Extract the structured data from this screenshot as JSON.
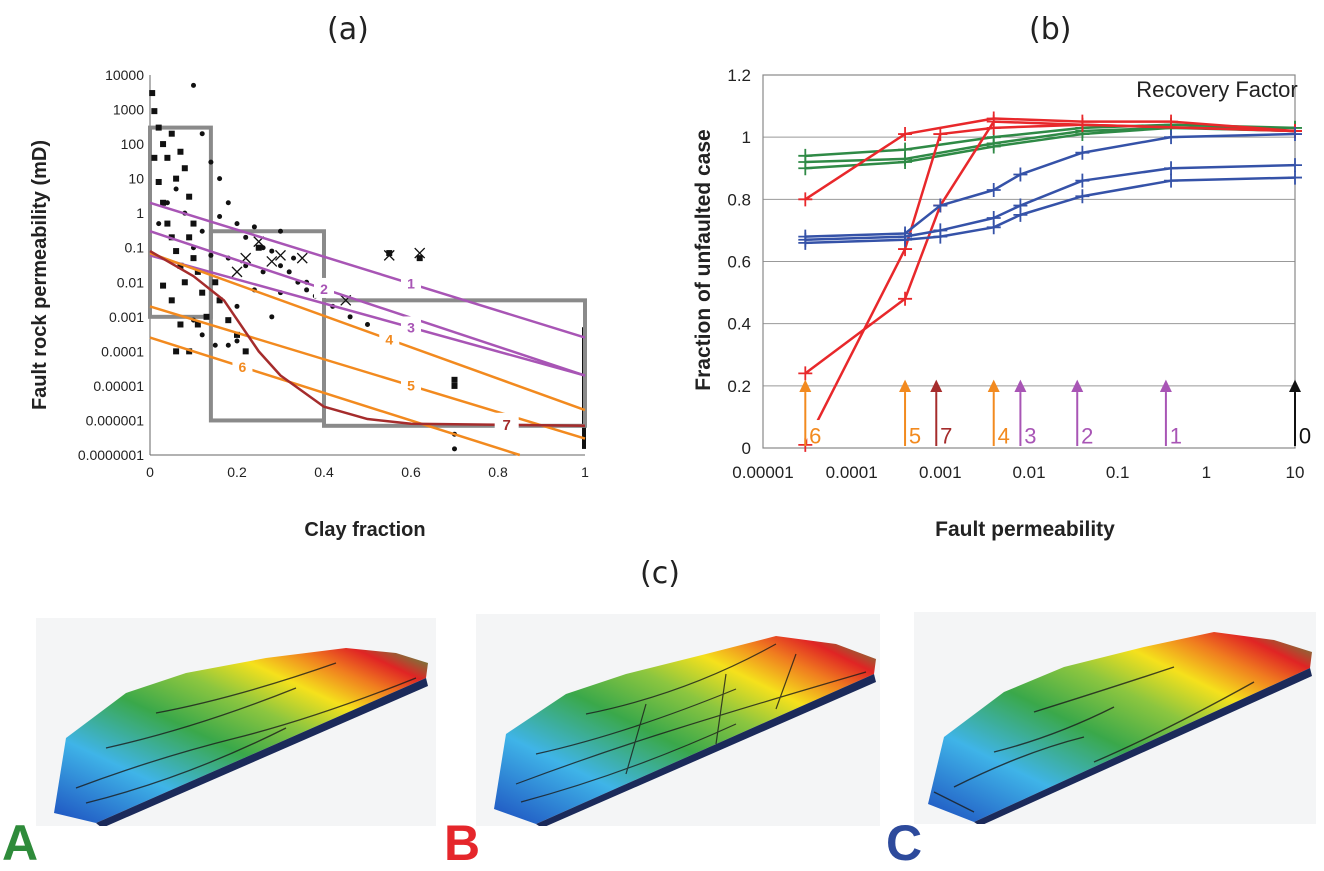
{
  "panels": {
    "a": {
      "label": "(a)"
    },
    "b": {
      "label": "(b)"
    },
    "c": {
      "label": "(c)"
    }
  },
  "colors": {
    "magenta": "#a855b5",
    "orange": "#f28a1f",
    "darkred": "#a52c2c",
    "red": "#e8282b",
    "green": "#2f8a46",
    "blue": "#3552a8",
    "gray": "#8a8a8a",
    "black": "#111111",
    "A": "#2e8b3a",
    "B": "#e5262b",
    "C": "#2d4a9c"
  },
  "chart_data": [
    {
      "id": "a",
      "type": "scatter",
      "xlabel": "Clay fraction",
      "ylabel": "Fault rock permeability (mD)",
      "xlim": [
        0,
        1
      ],
      "ylim_log10": [
        -7,
        4
      ],
      "x_ticks": [
        "0",
        "0.2",
        "0.4",
        "0.6",
        "0.8",
        "1"
      ],
      "y_ticks": [
        "10000",
        "1000",
        "100",
        "10",
        "1",
        "0.1",
        "0.01",
        "0.001",
        "0.0001",
        "0.00001",
        "0.000001",
        "0.0000001"
      ],
      "lines": [
        {
          "name": "1",
          "color": "magenta",
          "from": [
            0,
            2
          ],
          "to": [
            1,
            0.00025
          ]
        },
        {
          "name": "2",
          "color": "magenta",
          "from": [
            0,
            0.3
          ],
          "to": [
            1,
            2e-05
          ]
        },
        {
          "name": "3",
          "color": "magenta",
          "from": [
            0,
            0.06
          ],
          "to": [
            1,
            2e-05
          ]
        },
        {
          "name": "4",
          "color": "orange",
          "from": [
            0,
            0.07
          ],
          "to": [
            1,
            2e-06
          ]
        },
        {
          "name": "5",
          "color": "orange",
          "from": [
            0,
            0.002
          ],
          "to": [
            1,
            3e-07
          ]
        },
        {
          "name": "6",
          "color": "orange",
          "from": [
            0,
            0.00025
          ],
          "to": [
            0.85,
            1e-07
          ]
        }
      ],
      "curve7": {
        "name": "7",
        "color": "darkred",
        "points": [
          [
            0,
            0.08
          ],
          [
            0.1,
            0.015
          ],
          [
            0.17,
            0.003
          ],
          [
            0.25,
            0.0001
          ],
          [
            0.3,
            2e-05
          ],
          [
            0.4,
            2.5e-06
          ],
          [
            0.5,
            1.1e-06
          ],
          [
            0.6,
            8e-07
          ],
          [
            1,
            7e-07
          ]
        ]
      },
      "boxes": [
        {
          "x": [
            0,
            0.14
          ],
          "y": [
            0.001,
            300
          ]
        },
        {
          "x": [
            0.14,
            0.4
          ],
          "y": [
            1e-06,
            0.3
          ]
        },
        {
          "x": [
            0.4,
            1
          ],
          "y": [
            7e-07,
            0.003
          ]
        }
      ],
      "points_square": [
        [
          0.005,
          3000
        ],
        [
          0.01,
          900
        ],
        [
          0.02,
          300
        ],
        [
          0.03,
          100
        ],
        [
          0.04,
          40
        ],
        [
          0.05,
          200
        ],
        [
          0.06,
          10
        ],
        [
          0.07,
          60
        ],
        [
          0.08,
          20
        ],
        [
          0.09,
          3
        ],
        [
          0.1,
          0.5
        ],
        [
          0.01,
          40
        ],
        [
          0.02,
          8
        ],
        [
          0.03,
          2
        ],
        [
          0.04,
          0.5
        ],
        [
          0.05,
          0.2
        ],
        [
          0.06,
          0.08
        ],
        [
          0.07,
          0.03
        ],
        [
          0.08,
          0.01
        ],
        [
          0.09,
          0.2
        ],
        [
          0.1,
          0.05
        ],
        [
          0.11,
          0.02
        ],
        [
          0.12,
          0.005
        ],
        [
          0.13,
          0.001
        ],
        [
          0.15,
          0.01
        ],
        [
          0.16,
          0.003
        ],
        [
          0.18,
          0.0008
        ],
        [
          0.2,
          0.0003
        ],
        [
          0.22,
          0.0001
        ],
        [
          0.06,
          0.0001
        ],
        [
          0.7,
          1.5e-05
        ],
        [
          0.7,
          1e-05
        ],
        [
          0.55,
          0.07
        ],
        [
          0.62,
          0.05
        ],
        [
          0.03,
          0.008
        ],
        [
          0.05,
          0.003
        ],
        [
          0.07,
          0.0006
        ],
        [
          0.09,
          0.0001
        ],
        [
          0.11,
          0.0006
        ],
        [
          0.25,
          0.1
        ]
      ],
      "points_dot": [
        [
          0.1,
          5000
        ],
        [
          0.12,
          200
        ],
        [
          0.14,
          30
        ],
        [
          0.16,
          10
        ],
        [
          0.18,
          2
        ],
        [
          0.2,
          0.5
        ],
        [
          0.22,
          0.2
        ],
        [
          0.24,
          0.4
        ],
        [
          0.26,
          0.1
        ],
        [
          0.28,
          0.08
        ],
        [
          0.3,
          0.3
        ],
        [
          0.32,
          0.02
        ],
        [
          0.34,
          0.01
        ],
        [
          0.36,
          0.006
        ],
        [
          0.38,
          0.004
        ],
        [
          0.42,
          0.002
        ],
        [
          0.46,
          0.001
        ],
        [
          0.5,
          0.0006
        ],
        [
          0.2,
          0.0002
        ],
        [
          0.15,
          0.00015
        ],
        [
          0.18,
          0.00015
        ],
        [
          0.1,
          0.0008
        ],
        [
          0.12,
          0.0003
        ],
        [
          0.3,
          0.005
        ],
        [
          0.26,
          0.02
        ],
        [
          0.22,
          0.03
        ],
        [
          0.24,
          0.006
        ],
        [
          0.28,
          0.001
        ],
        [
          0.7,
          1.5e-07
        ],
        [
          0.7,
          4e-07
        ],
        [
          0.02,
          0.5
        ],
        [
          0.04,
          2
        ],
        [
          0.06,
          5
        ],
        [
          0.08,
          1
        ],
        [
          0.1,
          0.1
        ],
        [
          0.12,
          0.3
        ],
        [
          0.14,
          0.06
        ],
        [
          0.16,
          0.8
        ],
        [
          0.18,
          0.05
        ],
        [
          0.2,
          0.002
        ],
        [
          0.3,
          0.03
        ],
        [
          0.33,
          0.05
        ],
        [
          0.36,
          0.01
        ]
      ],
      "points_x": [
        [
          0.25,
          0.15
        ],
        [
          0.28,
          0.04
        ],
        [
          0.3,
          0.06
        ],
        [
          0.35,
          0.05
        ],
        [
          0.45,
          0.003
        ],
        [
          0.55,
          0.06
        ],
        [
          0.62,
          0.07
        ],
        [
          0.22,
          0.05
        ],
        [
          0.2,
          0.02
        ]
      ]
    },
    {
      "id": "b",
      "type": "line",
      "title": "Recovery Factor",
      "xlabel": "Fault permeability",
      "ylabel": "Fraction of unfaulted case",
      "xlim_log10": [
        -5,
        1
      ],
      "ylim": [
        0,
        1.2
      ],
      "x_ticks": [
        "0.00001",
        "0.0001",
        "0.001",
        "0.01",
        "0.1",
        "1",
        "10"
      ],
      "y_ticks": [
        "0",
        "0.2",
        "0.4",
        "0.6",
        "0.8",
        "1",
        "1.2"
      ],
      "series": [
        {
          "color": "green",
          "x": [
            3e-05,
            0.0004,
            0.004,
            0.04,
            0.4,
            10
          ],
          "y": [
            0.94,
            0.96,
            1.0,
            1.03,
            1.04,
            1.03
          ]
        },
        {
          "color": "green",
          "x": [
            3e-05,
            0.0004,
            0.004,
            0.04,
            0.4,
            10
          ],
          "y": [
            0.92,
            0.93,
            0.98,
            1.02,
            1.03,
            1.02
          ]
        },
        {
          "color": "green",
          "x": [
            3e-05,
            0.0004,
            0.004,
            0.04,
            0.4,
            10
          ],
          "y": [
            0.9,
            0.92,
            0.97,
            1.01,
            1.03,
            1.03
          ]
        },
        {
          "color": "red",
          "x": [
            3e-05,
            0.0004,
            0.004,
            0.04,
            0.4,
            10
          ],
          "y": [
            0.8,
            1.01,
            1.06,
            1.05,
            1.05,
            1.02
          ]
        },
        {
          "color": "red",
          "x": [
            3e-05,
            0.0004,
            0.001,
            0.004,
            0.04,
            10
          ],
          "y": [
            0.01,
            0.64,
            1.01,
            1.03,
            1.04,
            1.02
          ]
        },
        {
          "color": "red",
          "x": [
            3e-05,
            0.0004,
            0.001,
            0.004,
            0.04,
            10
          ],
          "y": [
            0.24,
            0.48,
            0.78,
            1.05,
            1.04,
            1.02
          ]
        },
        {
          "color": "blue",
          "x": [
            3e-05,
            0.0004,
            0.001,
            0.004,
            0.008,
            0.04,
            0.4,
            10
          ],
          "y": [
            0.68,
            0.69,
            0.78,
            0.83,
            0.88,
            0.95,
            1.0,
            1.01
          ]
        },
        {
          "color": "blue",
          "x": [
            3e-05,
            0.0004,
            0.001,
            0.004,
            0.008,
            0.04,
            0.4,
            10
          ],
          "y": [
            0.67,
            0.68,
            0.7,
            0.74,
            0.78,
            0.86,
            0.9,
            0.91
          ]
        },
        {
          "color": "blue",
          "x": [
            3e-05,
            0.0004,
            0.001,
            0.004,
            0.008,
            0.04,
            0.4,
            10
          ],
          "y": [
            0.66,
            0.67,
            0.68,
            0.71,
            0.75,
            0.81,
            0.86,
            0.87
          ]
        }
      ],
      "arrows": [
        {
          "label": "6",
          "color": "orange",
          "x": 3e-05
        },
        {
          "label": "5",
          "color": "orange",
          "x": 0.0004
        },
        {
          "label": "7",
          "color": "darkred",
          "x": 0.0009
        },
        {
          "label": "4",
          "color": "orange",
          "x": 0.004
        },
        {
          "label": "3",
          "color": "magenta",
          "x": 0.008
        },
        {
          "label": "2",
          "color": "magenta",
          "x": 0.035
        },
        {
          "label": "1",
          "color": "magenta",
          "x": 0.35
        },
        {
          "label": "0",
          "color": "black",
          "x": 10
        }
      ]
    }
  ],
  "models": [
    {
      "letter": "A",
      "color_key": "A"
    },
    {
      "letter": "B",
      "color_key": "B"
    },
    {
      "letter": "C",
      "color_key": "C"
    }
  ]
}
